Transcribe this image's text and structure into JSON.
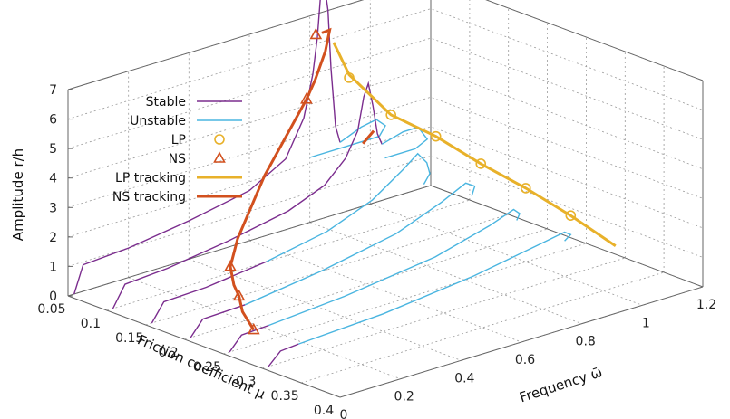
{
  "chart_data": {
    "type": "line",
    "title": "",
    "xlabel": "Friction coefficient μ",
    "ylabel": "Frequency ω̄",
    "zlabel": "Amplitude r/h",
    "x_ticks": [
      "0.05",
      "0.1",
      "0.15",
      "0.2",
      "0.25",
      "0.3",
      "0.35",
      "0.4"
    ],
    "y_ticks": [
      "0",
      "0.2",
      "0.4",
      "0.6",
      "0.8",
      "1",
      "1.2"
    ],
    "z_ticks": [
      "0",
      "1",
      "2",
      "3",
      "4",
      "5",
      "6",
      "7"
    ],
    "xlim": [
      0.05,
      0.4
    ],
    "ylim": [
      0,
      1.2
    ],
    "zlim": [
      0,
      7
    ],
    "grid": true,
    "legend_position": "top-left",
    "legend": [
      {
        "label": "Stable",
        "style": "line",
        "color": "#7b2d8e"
      },
      {
        "label": "Unstable",
        "style": "line",
        "color": "#4ab5e0"
      },
      {
        "label": "LP",
        "style": "circle",
        "color": "#e8b12a"
      },
      {
        "label": "NS",
        "style": "triangle",
        "color": "#d2501e"
      },
      {
        "label": "LP tracking",
        "style": "thick-line",
        "color": "#e8b12a"
      },
      {
        "label": "NS tracking",
        "style": "thick-line",
        "color": "#d2501e"
      }
    ],
    "colors": {
      "stable": "#7b2d8e",
      "unstable": "#4ab5e0",
      "lp": "#e8b12a",
      "ns": "#d2501e"
    },
    "frf_curves": [
      {
        "mu": 0.05,
        "stable": [
          [
            0.02,
            0
          ],
          [
            0.05,
            0.9
          ],
          [
            0.2,
            1.0
          ],
          [
            0.4,
            1.3
          ],
          [
            0.6,
            1.7
          ],
          [
            0.72,
            2.4
          ],
          [
            0.78,
            3.6
          ],
          [
            0.81,
            5.0
          ],
          [
            0.825,
            6.2
          ],
          [
            0.835,
            7.5
          ],
          [
            0.85,
            7.8
          ],
          [
            0.86,
            7.0
          ],
          [
            0.87,
            5.0
          ],
          [
            0.885,
            3.0
          ],
          [
            0.9,
            2.4
          ]
        ],
        "unstable": [
          [
            0.9,
            2.4
          ],
          [
            0.97,
            2.7
          ],
          [
            1.02,
            2.8
          ],
          [
            1.05,
            2.5
          ],
          [
            1.03,
            2.2
          ],
          [
            0.92,
            2.2
          ],
          [
            0.8,
            2.2
          ]
        ]
      },
      {
        "mu": 0.1,
        "stable": [
          [
            0.02,
            0
          ],
          [
            0.06,
            0.7
          ],
          [
            0.2,
            0.8
          ],
          [
            0.4,
            1.1
          ],
          [
            0.6,
            1.5
          ],
          [
            0.72,
            2.0
          ],
          [
            0.79,
            2.7
          ],
          [
            0.83,
            3.5
          ],
          [
            0.85,
            4.6
          ],
          [
            0.865,
            5.0
          ],
          [
            0.88,
            4.2
          ],
          [
            0.895,
            3.2
          ],
          [
            0.91,
            2.8
          ]
        ],
        "unstable": [
          [
            0.91,
            2.8
          ],
          [
            0.98,
            3.0
          ],
          [
            1.03,
            3.0
          ],
          [
            1.06,
            2.5
          ],
          [
            1.02,
            2.3
          ],
          [
            0.92,
            2.3
          ]
        ]
      },
      {
        "mu": 0.15,
        "stable": [
          [
            0.02,
            0
          ],
          [
            0.06,
            0.6
          ],
          [
            0.2,
            0.65
          ],
          [
            0.4,
            0.9
          ]
        ],
        "unstable": [
          [
            0.4,
            0.9
          ],
          [
            0.6,
            1.3
          ],
          [
            0.75,
            1.9
          ],
          [
            0.85,
            2.6
          ],
          [
            0.9,
            3.0
          ],
          [
            0.93,
            2.6
          ],
          [
            0.94,
            2.2
          ],
          [
            0.92,
            1.9
          ]
        ]
      },
      {
        "mu": 0.2,
        "stable": [
          [
            0.02,
            0
          ],
          [
            0.06,
            0.5
          ],
          [
            0.2,
            0.55
          ]
        ],
        "unstable": [
          [
            0.2,
            0.55
          ],
          [
            0.45,
            0.9
          ],
          [
            0.7,
            1.4
          ],
          [
            0.85,
            2.0
          ],
          [
            0.93,
            2.4
          ],
          [
            0.96,
            2.2
          ],
          [
            0.95,
            1.9
          ]
        ]
      },
      {
        "mu": 0.25,
        "stable": [
          [
            0.02,
            0
          ],
          [
            0.06,
            0.45
          ],
          [
            0.15,
            0.5
          ]
        ],
        "unstable": [
          [
            0.15,
            0.5
          ],
          [
            0.4,
            0.7
          ],
          [
            0.7,
            1.1
          ],
          [
            0.88,
            1.6
          ],
          [
            0.96,
            1.9
          ],
          [
            0.98,
            1.7
          ],
          [
            0.97,
            1.5
          ]
        ]
      },
      {
        "mu": 0.3,
        "stable": [
          [
            0.02,
            0
          ],
          [
            0.06,
            0.4
          ],
          [
            0.12,
            0.45
          ]
        ],
        "unstable": [
          [
            0.12,
            0.45
          ],
          [
            0.4,
            0.6
          ],
          [
            0.7,
            0.95
          ],
          [
            0.92,
            1.35
          ],
          [
            1.0,
            1.5
          ],
          [
            1.02,
            1.35
          ],
          [
            1.0,
            1.2
          ]
        ]
      }
    ],
    "lp_points": [
      [
        0.05,
        0.93,
        4.5
      ],
      [
        0.1,
        0.94,
        3.7
      ],
      [
        0.15,
        0.96,
        3.4
      ],
      [
        0.2,
        0.98,
        2.9
      ],
      [
        0.25,
        1.0,
        2.5
      ],
      [
        0.3,
        1.02,
        2.0
      ]
    ],
    "ns_points": [
      [
        0.05,
        0.82,
        6.3
      ],
      [
        0.1,
        0.66,
        5.1
      ],
      [
        0.15,
        0.28,
        1.1
      ],
      [
        0.2,
        0.18,
        0.9
      ],
      [
        0.25,
        0.1,
        0.5
      ]
    ],
    "lp_tracking": [
      [
        0.03,
        0.93,
        5.5
      ],
      [
        0.05,
        0.93,
        4.6
      ],
      [
        0.1,
        0.94,
        3.7
      ],
      [
        0.15,
        0.96,
        3.4
      ],
      [
        0.2,
        0.98,
        2.9
      ],
      [
        0.25,
        1.0,
        2.5
      ],
      [
        0.3,
        1.02,
        2.0
      ],
      [
        0.35,
        1.04,
        1.4
      ]
    ],
    "ns_tracking": [
      [
        0.05,
        0.84,
        6.3
      ],
      [
        0.06,
        0.84,
        6.5
      ],
      [
        0.07,
        0.8,
        6.0
      ],
      [
        0.08,
        0.74,
        5.3
      ],
      [
        0.1,
        0.66,
        5.1
      ],
      [
        0.12,
        0.47,
        3.3
      ],
      [
        0.14,
        0.33,
        1.8
      ],
      [
        0.15,
        0.28,
        1.1
      ],
      [
        0.17,
        0.24,
        0.8
      ],
      [
        0.2,
        0.18,
        0.9
      ],
      [
        0.22,
        0.14,
        0.7
      ],
      [
        0.25,
        0.1,
        0.5
      ],
      [
        0.07,
        0.96,
        2.8
      ],
      [
        0.06,
        0.95,
        2.3
      ]
    ]
  }
}
